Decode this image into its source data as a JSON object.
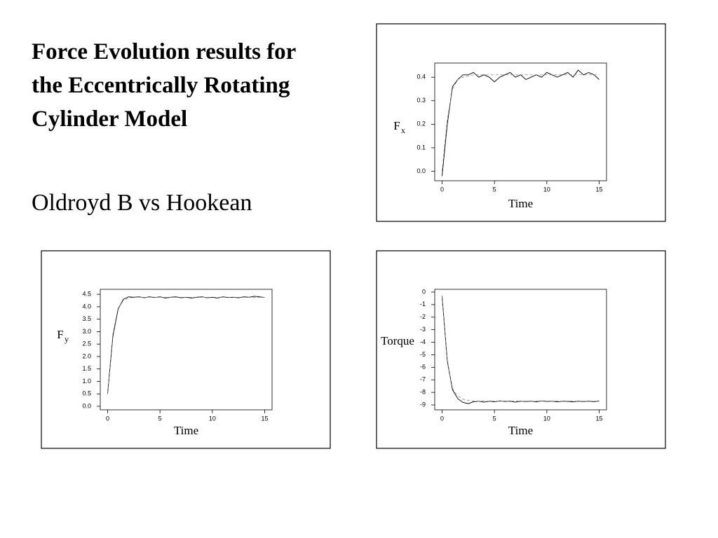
{
  "title": "Force Evolution results for the Eccentrically Rotating Cylinder Model",
  "subtitle": "Oldroyd B vs Hookean",
  "chart_data": [
    {
      "type": "line",
      "x_label": "Time",
      "y_label": "F",
      "y_label_subscript": "x",
      "x": [
        0,
        0.5,
        1,
        1.5,
        2,
        2.5,
        3,
        3.5,
        4,
        4.5,
        5,
        5.5,
        6,
        6.5,
        7,
        7.5,
        8,
        8.5,
        9,
        9.5,
        10,
        10.5,
        11,
        11.5,
        12,
        12.5,
        13,
        13.5,
        14,
        14.5,
        15
      ],
      "xlim": [
        -0.7,
        15.7
      ],
      "xticks": [
        0,
        5,
        10,
        15
      ],
      "ylim": [
        -0.04,
        0.46
      ],
      "yticks": [
        {
          "value": 0,
          "label": "0.0"
        },
        0.1,
        0.2,
        0.3,
        0.4
      ],
      "series": [
        {
          "color": "#000000",
          "style": "solid",
          "values": [
            -0.02,
            0.2,
            0.36,
            0.39,
            0.41,
            0.41,
            0.42,
            0.4,
            0.41,
            0.4,
            0.38,
            0.4,
            0.41,
            0.42,
            0.4,
            0.41,
            0.39,
            0.4,
            0.41,
            0.4,
            0.42,
            0.41,
            0.4,
            0.41,
            0.42,
            0.4,
            0.43,
            0.41,
            0.42,
            0.41,
            0.39
          ]
        },
        {
          "color": "#777777",
          "style": "dashed",
          "values": [
            0,
            0.22,
            0.35,
            0.39,
            0.4,
            0.405,
            0.41,
            0.41,
            0.41,
            0.41,
            0.41,
            0.41,
            0.41,
            0.41,
            0.41,
            0.41,
            0.41,
            0.41,
            0.41,
            0.41,
            0.41,
            0.41,
            0.41,
            0.41,
            0.41,
            0.41,
            0.41,
            0.41,
            0.41,
            0.41,
            0.41
          ]
        }
      ]
    },
    {
      "type": "line",
      "x_label": "Time",
      "y_label": "F",
      "y_label_subscript": "y",
      "x": [
        0,
        0.5,
        1,
        1.5,
        2,
        2.5,
        3,
        3.5,
        4,
        4.5,
        5,
        5.5,
        6,
        6.5,
        7,
        7.5,
        8,
        8.5,
        9,
        9.5,
        10,
        10.5,
        11,
        11.5,
        12,
        12.5,
        13,
        13.5,
        14,
        14.5,
        15
      ],
      "xlim": [
        -0.7,
        15.7
      ],
      "xticks": [
        0,
        5,
        10,
        15
      ],
      "ylim": [
        -0.14,
        4.7
      ],
      "yticks": [
        {
          "value": 0,
          "label": "0.0"
        },
        0.5,
        {
          "value": 1,
          "label": "1.0"
        },
        1.5,
        {
          "value": 2,
          "label": "2.0"
        },
        2.5,
        {
          "value": 3,
          "label": "3.0"
        },
        3.5,
        {
          "value": 4,
          "label": "4.0"
        },
        4.5
      ],
      "series": [
        {
          "color": "#000000",
          "style": "solid",
          "values": [
            0.5,
            2.8,
            3.9,
            4.3,
            4.4,
            4.38,
            4.4,
            4.36,
            4.4,
            4.37,
            4.4,
            4.35,
            4.38,
            4.4,
            4.36,
            4.38,
            4.35,
            4.38,
            4.4,
            4.36,
            4.38,
            4.35,
            4.4,
            4.37,
            4.38,
            4.36,
            4.4,
            4.38,
            4.42,
            4.4,
            4.37
          ]
        },
        {
          "color": "#777777",
          "style": "dashed",
          "values": [
            0.5,
            2.9,
            3.95,
            4.25,
            4.35,
            4.38,
            4.38,
            4.38,
            4.38,
            4.38,
            4.38,
            4.38,
            4.38,
            4.38,
            4.38,
            4.38,
            4.38,
            4.38,
            4.38,
            4.38,
            4.38,
            4.38,
            4.38,
            4.38,
            4.38,
            4.38,
            4.38,
            4.38,
            4.38,
            4.38,
            4.38
          ]
        }
      ]
    },
    {
      "type": "line",
      "x_label": "Time",
      "y_label": "Torque",
      "x": [
        0,
        0.5,
        1,
        1.5,
        2,
        2.5,
        3,
        3.5,
        4,
        4.5,
        5,
        5.5,
        6,
        6.5,
        7,
        7.5,
        8,
        8.5,
        9,
        9.5,
        10,
        10.5,
        11,
        11.5,
        12,
        12.5,
        13,
        13.5,
        14,
        14.5,
        15
      ],
      "xlim": [
        -0.7,
        15.7
      ],
      "xticks": [
        0,
        5,
        10,
        15
      ],
      "ylim": [
        -9.39,
        0.22
      ],
      "yticks": [
        0,
        -1,
        -2,
        -3,
        -4,
        -5,
        -6,
        -7,
        -8,
        -9
      ],
      "series": [
        {
          "color": "#000000",
          "style": "solid",
          "values": [
            -0.3,
            -5.5,
            -7.8,
            -8.5,
            -8.8,
            -8.9,
            -8.75,
            -8.7,
            -8.78,
            -8.7,
            -8.75,
            -8.68,
            -8.72,
            -8.7,
            -8.78,
            -8.7,
            -8.73,
            -8.7,
            -8.75,
            -8.68,
            -8.72,
            -8.7,
            -8.76,
            -8.7,
            -8.72,
            -8.75,
            -8.7,
            -8.73,
            -8.7,
            -8.74,
            -8.68
          ]
        },
        {
          "color": "#777777",
          "style": "dashed",
          "values": [
            -0.3,
            -5.6,
            -7.7,
            -8.3,
            -8.55,
            -8.65,
            -8.7,
            -8.7,
            -8.7,
            -8.7,
            -8.7,
            -8.7,
            -8.7,
            -8.7,
            -8.7,
            -8.7,
            -8.7,
            -8.7,
            -8.7,
            -8.7,
            -8.7,
            -8.7,
            -8.7,
            -8.7,
            -8.7,
            -8.7,
            -8.7,
            -8.7,
            -8.7,
            -8.7,
            -8.7
          ]
        }
      ]
    }
  ]
}
